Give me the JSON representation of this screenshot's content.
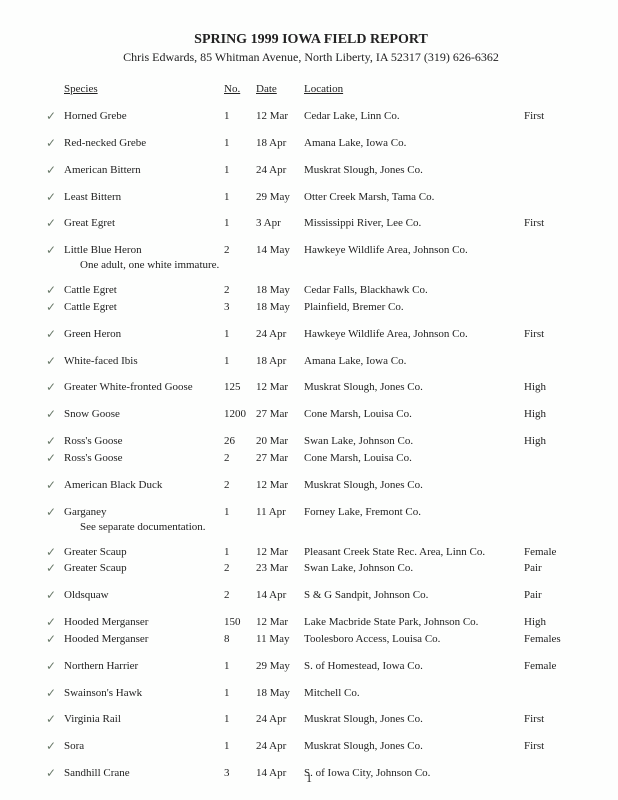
{
  "title": "SPRING 1999 IOWA FIELD REPORT",
  "subtitle": "Chris Edwards, 85 Whitman Avenue, North Liberty, IA 52317 (319) 626-6362",
  "headers": {
    "species": "Species",
    "no": "No.",
    "date": "Date",
    "location": "Location"
  },
  "page_number": "1",
  "check_glyph": "✓",
  "groups": [
    {
      "rows": [
        {
          "check": true,
          "species": "Horned Grebe",
          "no": "1",
          "date": "12 Mar",
          "location": "Cedar Lake, Linn Co.",
          "note": "First"
        }
      ]
    },
    {
      "rows": [
        {
          "check": true,
          "species": "Red-necked Grebe",
          "no": "1",
          "date": "18 Apr",
          "location": "Amana Lake, Iowa Co.",
          "note": ""
        }
      ]
    },
    {
      "rows": [
        {
          "check": true,
          "species": "American Bittern",
          "no": "1",
          "date": "24 Apr",
          "location": "Muskrat Slough, Jones Co.",
          "note": ""
        }
      ]
    },
    {
      "rows": [
        {
          "check": true,
          "species": "Least Bittern",
          "no": "1",
          "date": "29 May",
          "location": "Otter Creek Marsh, Tama Co.",
          "note": ""
        }
      ]
    },
    {
      "rows": [
        {
          "check": true,
          "species": "Great Egret",
          "no": "1",
          "date": "3 Apr",
          "location": "Mississippi River, Lee Co.",
          "note": "First"
        }
      ]
    },
    {
      "rows": [
        {
          "check": true,
          "species": "Little Blue Heron",
          "no": "2",
          "date": "14 May",
          "location": "Hawkeye Wildlife Area, Johnson Co.",
          "note": ""
        }
      ],
      "subnote": "One adult, one white immature."
    },
    {
      "rows": [
        {
          "check": true,
          "species": "Cattle Egret",
          "no": "2",
          "date": "18 May",
          "location": "Cedar Falls, Blackhawk Co.",
          "note": ""
        },
        {
          "check": true,
          "species": "Cattle Egret",
          "no": "3",
          "date": "18 May",
          "location": "Plainfield, Bremer Co.",
          "note": ""
        }
      ]
    },
    {
      "rows": [
        {
          "check": true,
          "species": "Green Heron",
          "no": "1",
          "date": "24 Apr",
          "location": "Hawkeye Wildlife Area, Johnson Co.",
          "note": "First"
        }
      ]
    },
    {
      "rows": [
        {
          "check": true,
          "species": "White-faced Ibis",
          "no": "1",
          "date": "18 Apr",
          "location": "Amana Lake, Iowa Co.",
          "note": ""
        }
      ]
    },
    {
      "rows": [
        {
          "check": true,
          "species": "Greater White-fronted Goose",
          "no": "125",
          "date": "12 Mar",
          "location": "Muskrat Slough, Jones Co.",
          "note": "High"
        }
      ]
    },
    {
      "rows": [
        {
          "check": true,
          "species": "Snow Goose",
          "no": "1200",
          "date": "27 Mar",
          "location": "Cone Marsh, Louisa Co.",
          "note": "High"
        }
      ]
    },
    {
      "rows": [
        {
          "check": true,
          "species": "Ross's Goose",
          "no": "26",
          "date": "20 Mar",
          "location": "Swan Lake, Johnson Co.",
          "note": "High"
        },
        {
          "check": true,
          "species": "Ross's Goose",
          "no": "2",
          "date": "27 Mar",
          "location": "Cone Marsh, Louisa Co.",
          "note": ""
        }
      ]
    },
    {
      "rows": [
        {
          "check": true,
          "species": "American Black Duck",
          "no": "2",
          "date": "12 Mar",
          "location": "Muskrat Slough, Jones Co.",
          "note": ""
        }
      ]
    },
    {
      "rows": [
        {
          "check": true,
          "species": "Garganey",
          "no": "1",
          "date": "11 Apr",
          "location": "Forney Lake, Fremont Co.",
          "note": ""
        }
      ],
      "subnote": "See separate documentation."
    },
    {
      "rows": [
        {
          "check": true,
          "species": "Greater Scaup",
          "no": "1",
          "date": "12 Mar",
          "location": "Pleasant Creek State Rec. Area, Linn Co.",
          "note": "Female"
        },
        {
          "check": true,
          "species": "Greater Scaup",
          "no": "2",
          "date": "23 Mar",
          "location": "Swan Lake, Johnson Co.",
          "note": "Pair"
        }
      ]
    },
    {
      "rows": [
        {
          "check": true,
          "species": "Oldsquaw",
          "no": "2",
          "date": "14 Apr",
          "location": "S & G Sandpit, Johnson Co.",
          "note": "Pair"
        }
      ]
    },
    {
      "rows": [
        {
          "check": true,
          "species": "Hooded Merganser",
          "no": "150",
          "date": "12 Mar",
          "location": "Lake Macbride State Park, Johnson Co.",
          "note": "High"
        },
        {
          "check": true,
          "species": "Hooded Merganser",
          "no": "8",
          "date": "11 May",
          "location": "Toolesboro Access, Louisa Co.",
          "note": "Females"
        }
      ]
    },
    {
      "rows": [
        {
          "check": true,
          "species": "Northern Harrier",
          "no": "1",
          "date": "29 May",
          "location": "S. of Homestead, Iowa Co.",
          "note": "Female"
        }
      ]
    },
    {
      "rows": [
        {
          "check": true,
          "species": "Swainson's Hawk",
          "no": "1",
          "date": "18 May",
          "location": "Mitchell Co.",
          "note": ""
        }
      ]
    },
    {
      "rows": [
        {
          "check": true,
          "species": "Virginia Rail",
          "no": "1",
          "date": "24 Apr",
          "location": "Muskrat Slough, Jones Co.",
          "note": "First"
        }
      ]
    },
    {
      "rows": [
        {
          "check": true,
          "species": "Sora",
          "no": "1",
          "date": "24 Apr",
          "location": "Muskrat Slough, Jones Co.",
          "note": "First"
        }
      ]
    },
    {
      "rows": [
        {
          "check": true,
          "species": "Sandhill Crane",
          "no": "3",
          "date": "14 Apr",
          "location": "S. of Iowa City, Johnson Co.",
          "note": ""
        }
      ]
    }
  ]
}
